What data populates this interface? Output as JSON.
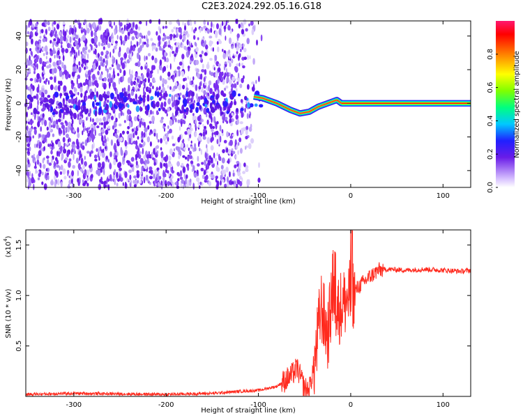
{
  "title": "C2E3.2024.292.05.16.G18",
  "colors": {
    "spectro_low": "#e8dcff",
    "spectro_mid": "#6a28e8",
    "snr_line": "#ff2a1e",
    "signal_line": "#00e63c"
  },
  "chart_data": [
    {
      "type": "heatmap",
      "title": "C2E3.2024.292.05.16.G18",
      "xlabel": "Height of straight line (km)",
      "ylabel": "Frequency (Hz)",
      "xlim": [
        -352,
        130
      ],
      "ylim": [
        -50,
        49
      ],
      "xticks": [
        -300,
        -200,
        -100,
        0,
        100
      ],
      "xtick_labels": [
        "-300",
        "-200",
        "-100",
        "0",
        "100"
      ],
      "yticks": [
        -40,
        -20,
        0,
        20,
        40
      ],
      "ytick_labels": [
        "-40",
        "-20",
        "0",
        "20",
        "40"
      ],
      "colorbar": {
        "label": "Normalized spectral amplitude",
        "range": [
          0,
          1
        ],
        "ticks": [
          0.0,
          0.2,
          0.4,
          0.6,
          0.8
        ],
        "tick_labels": [
          "0.0",
          "0.2",
          "0.4",
          "0.6",
          "0.8"
        ]
      },
      "signal_track": {
        "x": [
          -105,
          -95,
          -80,
          -65,
          -55,
          -45,
          -35,
          -25,
          -15,
          -10,
          130
        ],
        "y": [
          4,
          3,
          0,
          -4,
          -6,
          -5,
          -2,
          0,
          2,
          0,
          0
        ]
      }
    },
    {
      "type": "line",
      "xlabel": "Height of straight line (km)",
      "ylabel": "SNR (10 * v/v)",
      "y_scale_label": "(x10",
      "y_scale_exp": "4",
      "xlim": [
        -352,
        130
      ],
      "ylim": [
        0,
        1.65
      ],
      "xticks": [
        -300,
        -200,
        -100,
        0,
        100
      ],
      "xtick_labels": [
        "-300",
        "-200",
        "-100",
        "0",
        "100"
      ],
      "yticks": [
        0.5,
        1.0,
        1.5
      ],
      "ytick_labels": [
        "0.5",
        "1.0",
        "1.5"
      ],
      "series": [
        {
          "x": [
            -352,
            -300,
            -200,
            -150,
            -120,
            -100,
            -80,
            -65,
            -58,
            -50,
            -45,
            -38,
            -32,
            -25,
            -20,
            -15,
            -10,
            -5,
            0,
            10,
            20,
            30,
            40,
            60,
            80,
            100,
            120,
            130
          ],
          "y": [
            0.02,
            0.03,
            0.02,
            0.03,
            0.05,
            0.06,
            0.1,
            0.2,
            0.28,
            0.08,
            0.06,
            0.4,
            0.9,
            0.6,
            1.0,
            0.85,
            0.9,
            0.95,
            1.0,
            1.1,
            1.18,
            1.25,
            1.26,
            1.25,
            1.26,
            1.25,
            1.24,
            1.25
          ]
        }
      ]
    }
  ]
}
